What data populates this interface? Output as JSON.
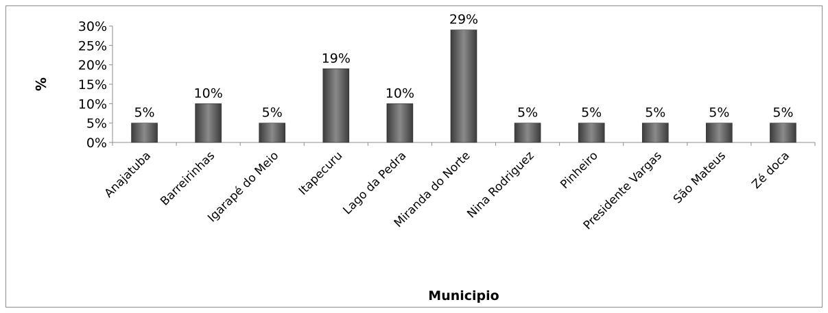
{
  "chart_data": {
    "type": "bar",
    "title": "",
    "xlabel": "Municipio",
    "ylabel": "%",
    "ylim": [
      0,
      30
    ],
    "yticks": [
      "0%",
      "5%",
      "10%",
      "15%",
      "20%",
      "25%",
      "30%"
    ],
    "ytick_values": [
      0,
      5,
      10,
      15,
      20,
      25,
      30
    ],
    "categories": [
      "Anajatuba",
      "Barreirinhas",
      "Igarapé do Meio",
      "Itapecuru",
      "Lago da Pedra",
      "Miranda do Norte",
      "Nina Rodriguez",
      "Pinheiro",
      "Presidente Vargas",
      "São Mateus",
      "Zé doca"
    ],
    "values": [
      5,
      10,
      5,
      19,
      10,
      29,
      5,
      5,
      5,
      5,
      5
    ],
    "data_labels": [
      "5%",
      "10%",
      "5%",
      "19%",
      "10%",
      "29%",
      "5%",
      "5%",
      "5%",
      "5%",
      "5%"
    ],
    "grid": false,
    "legend": "none",
    "colors": {
      "bar_dark": "#3c3c3c",
      "bar_light": "#8a8a8a",
      "axis": "#8c8c8c",
      "frame": "#8c8c8c"
    }
  }
}
